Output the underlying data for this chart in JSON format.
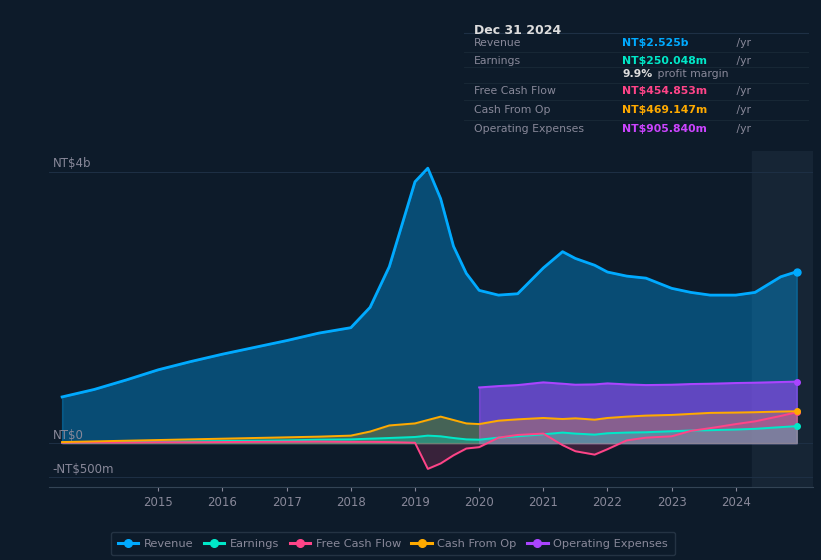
{
  "background_color": "#0d1b2a",
  "plot_bg_color": "#0d1b2a",
  "grid_color": "#253a50",
  "text_color": "#888899",
  "title_color": "#ffffff",
  "ylabel_top": "NT$4b",
  "ylabel_zero": "NT$0",
  "ylabel_neg": "-NT$500m",
  "years": [
    2013.5,
    2014.0,
    2014.5,
    2015.0,
    2015.5,
    2016.0,
    2016.5,
    2017.0,
    2017.5,
    2018.0,
    2018.3,
    2018.6,
    2019.0,
    2019.2,
    2019.4,
    2019.6,
    2019.8,
    2020.0,
    2020.3,
    2020.6,
    2021.0,
    2021.3,
    2021.5,
    2021.8,
    2022.0,
    2022.3,
    2022.6,
    2023.0,
    2023.3,
    2023.6,
    2024.0,
    2024.3,
    2024.7,
    2024.95
  ],
  "revenue": [
    680,
    790,
    930,
    1080,
    1200,
    1310,
    1410,
    1510,
    1620,
    1700,
    2000,
    2600,
    3850,
    4050,
    3600,
    2900,
    2500,
    2250,
    2180,
    2200,
    2580,
    2820,
    2720,
    2620,
    2520,
    2460,
    2430,
    2280,
    2220,
    2180,
    2180,
    2220,
    2450,
    2525
  ],
  "earnings": [
    5,
    10,
    15,
    20,
    25,
    30,
    35,
    40,
    50,
    55,
    65,
    75,
    90,
    110,
    100,
    75,
    55,
    50,
    80,
    100,
    130,
    155,
    140,
    125,
    145,
    155,
    160,
    175,
    185,
    190,
    200,
    210,
    235,
    250
  ],
  "free_cash_flow": [
    5,
    8,
    8,
    12,
    12,
    15,
    18,
    20,
    22,
    18,
    18,
    15,
    5,
    -380,
    -300,
    -180,
    -80,
    -60,
    80,
    120,
    140,
    -30,
    -120,
    -170,
    -90,
    40,
    80,
    100,
    180,
    220,
    280,
    320,
    400,
    455
  ],
  "cash_from_op": [
    15,
    25,
    35,
    45,
    55,
    65,
    75,
    85,
    95,
    110,
    170,
    260,
    290,
    340,
    390,
    340,
    290,
    280,
    330,
    350,
    370,
    355,
    365,
    345,
    370,
    390,
    405,
    415,
    430,
    445,
    450,
    455,
    465,
    469
  ],
  "op_exp_years": [
    2020.0,
    2020.3,
    2020.6,
    2021.0,
    2021.3,
    2021.5,
    2021.8,
    2022.0,
    2022.3,
    2022.6,
    2023.0,
    2023.3,
    2023.6,
    2024.0,
    2024.3,
    2024.7,
    2024.95
  ],
  "operating_expenses": [
    820,
    840,
    855,
    895,
    875,
    860,
    865,
    880,
    865,
    855,
    860,
    870,
    875,
    885,
    890,
    900,
    906
  ],
  "revenue_color": "#00aaff",
  "earnings_color": "#00e8c8",
  "free_cash_flow_color": "#ff4488",
  "cash_from_op_color": "#ffaa00",
  "operating_expenses_color": "#aa44ff",
  "xlim": [
    2013.3,
    2025.2
  ],
  "ylim_bottom": -650,
  "ylim_top": 4300,
  "xtick_years": [
    2015,
    2016,
    2017,
    2018,
    2019,
    2020,
    2021,
    2022,
    2023,
    2024
  ],
  "highlight_x_start": 2024.25,
  "highlight_color": "#162535",
  "zero_line_color": "#aaaacc",
  "grid_line_color": "#1e3045",
  "info_box": {
    "title": "Dec 31 2024",
    "rows": [
      {
        "label": "Revenue",
        "value": "NT$2.525b",
        "suffix": " /yr",
        "value_color": "#00aaff"
      },
      {
        "label": "Earnings",
        "value": "NT$250.048m",
        "suffix": " /yr",
        "value_color": "#00e8c8"
      },
      {
        "label": "",
        "value": "9.9%",
        "suffix": " profit margin",
        "value_color": "#ffffff",
        "is_margin": true
      },
      {
        "label": "Free Cash Flow",
        "value": "NT$454.853m",
        "suffix": " /yr",
        "value_color": "#ff4488"
      },
      {
        "label": "Cash From Op",
        "value": "NT$469.147m",
        "suffix": " /yr",
        "value_color": "#ffaa00"
      },
      {
        "label": "Operating Expenses",
        "value": "NT$905.840m",
        "suffix": " /yr",
        "value_color": "#cc44ff"
      }
    ]
  },
  "legend_items": [
    {
      "label": "Revenue",
      "color": "#00aaff"
    },
    {
      "label": "Earnings",
      "color": "#00e8c8"
    },
    {
      "label": "Free Cash Flow",
      "color": "#ff4488"
    },
    {
      "label": "Cash From Op",
      "color": "#ffaa00"
    },
    {
      "label": "Operating Expenses",
      "color": "#aa44ff"
    }
  ]
}
